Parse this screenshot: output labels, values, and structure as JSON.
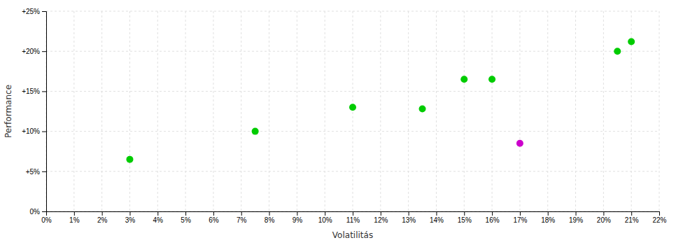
{
  "chart_data": {
    "type": "scatter",
    "xlabel": "Volatilitás",
    "ylabel": "Performance",
    "xlim": [
      0,
      0.22
    ],
    "ylim": [
      0,
      0.25
    ],
    "xticks": [
      {
        "value": 0.0,
        "label": "0%"
      },
      {
        "value": 0.01,
        "label": "1%"
      },
      {
        "value": 0.02,
        "label": "2%"
      },
      {
        "value": 0.03,
        "label": "3%"
      },
      {
        "value": 0.04,
        "label": "4%"
      },
      {
        "value": 0.05,
        "label": "5%"
      },
      {
        "value": 0.06,
        "label": "6%"
      },
      {
        "value": 0.07,
        "label": "7%"
      },
      {
        "value": 0.08,
        "label": "8%"
      },
      {
        "value": 0.09,
        "label": "9%"
      },
      {
        "value": 0.1,
        "label": "10%"
      },
      {
        "value": 0.11,
        "label": "11%"
      },
      {
        "value": 0.12,
        "label": "12%"
      },
      {
        "value": 0.13,
        "label": "13%"
      },
      {
        "value": 0.14,
        "label": "14%"
      },
      {
        "value": 0.15,
        "label": "15%"
      },
      {
        "value": 0.16,
        "label": "16%"
      },
      {
        "value": 0.17,
        "label": "17%"
      },
      {
        "value": 0.18,
        "label": "18%"
      },
      {
        "value": 0.19,
        "label": "19%"
      },
      {
        "value": 0.2,
        "label": "20%"
      },
      {
        "value": 0.21,
        "label": "21%"
      },
      {
        "value": 0.22,
        "label": "22%"
      }
    ],
    "yticks": [
      {
        "value": 0.0,
        "label": "0%"
      },
      {
        "value": 0.05,
        "label": "+5%"
      },
      {
        "value": 0.1,
        "label": "+10%"
      },
      {
        "value": 0.15,
        "label": "+15%"
      },
      {
        "value": 0.2,
        "label": "+20%"
      },
      {
        "value": 0.25,
        "label": "+25%"
      }
    ],
    "grid": true,
    "series": [
      {
        "color": "#00cc00",
        "marker": "circle",
        "x": [
          0.03,
          0.075,
          0.11,
          0.135,
          0.15,
          0.16,
          0.205,
          0.21
        ],
        "values": [
          0.065,
          0.1,
          0.13,
          0.128,
          0.165,
          0.165,
          0.2,
          0.212
        ]
      },
      {
        "color": "#cc00cc",
        "marker": "circle",
        "x": [
          0.17
        ],
        "values": [
          0.085
        ]
      }
    ]
  }
}
